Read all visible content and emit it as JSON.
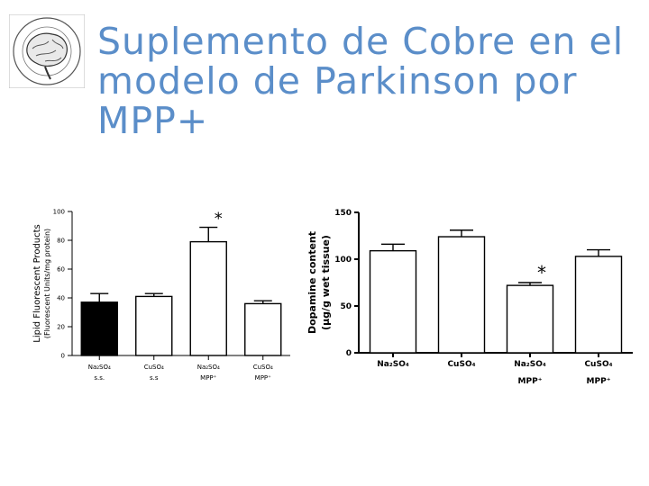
{
  "slide": {
    "title": "Suplemento de Cobre en el modelo de Parkinson por MPP+",
    "logo_icon": "brain-seal-logo",
    "logo_text": "SOCIEDAD MEXICANA DE CIENCIAS FISIOLÓGICAS MÉXICO"
  },
  "chart_data": [
    {
      "type": "bar",
      "ylabel": "Lipid Fluorescent Products",
      "ylabel2": "(Fluorescent Units/mg protein)",
      "yticks": [
        "0",
        "20",
        "40",
        "60",
        "80",
        "100"
      ],
      "ylim": [
        0,
        100
      ],
      "categories": [
        {
          "line1": "Na₂SO₄",
          "line2": "s.s."
        },
        {
          "line1": "CuSO₄",
          "line2": "s.s"
        },
        {
          "line1": "Na₂SO₄",
          "line2": "MPP⁺"
        },
        {
          "line1": "CuSO₄",
          "line2": "MPP⁺"
        }
      ],
      "values": [
        37,
        41,
        79,
        36
      ],
      "errors": [
        6,
        2,
        10,
        2
      ],
      "fills": [
        "#000000",
        "#ffffff",
        "#ffffff",
        "#ffffff"
      ],
      "significance": [
        "",
        "",
        "*",
        ""
      ],
      "grid": false
    },
    {
      "type": "bar",
      "ylabel": "Dopamine content",
      "ylabel2": "(μg/g wet tissue)",
      "yticks": [
        "0",
        "50",
        "100",
        "150"
      ],
      "ylim": [
        0,
        150
      ],
      "categories": [
        {
          "line1": "Na₂SO₄",
          "line2": ""
        },
        {
          "line1": "CuSO₄",
          "line2": ""
        },
        {
          "line1": "Na₂SO₄",
          "line2": "MPP⁺"
        },
        {
          "line1": "CuSO₄",
          "line2": "MPP⁺"
        }
      ],
      "values": [
        109,
        124,
        72,
        103
      ],
      "errors": [
        7,
        7,
        3,
        7
      ],
      "fills": [
        "#ffffff",
        "#ffffff",
        "#ffffff",
        "#ffffff"
      ],
      "significance": [
        "",
        "",
        "*",
        ""
      ],
      "grid": false
    }
  ]
}
